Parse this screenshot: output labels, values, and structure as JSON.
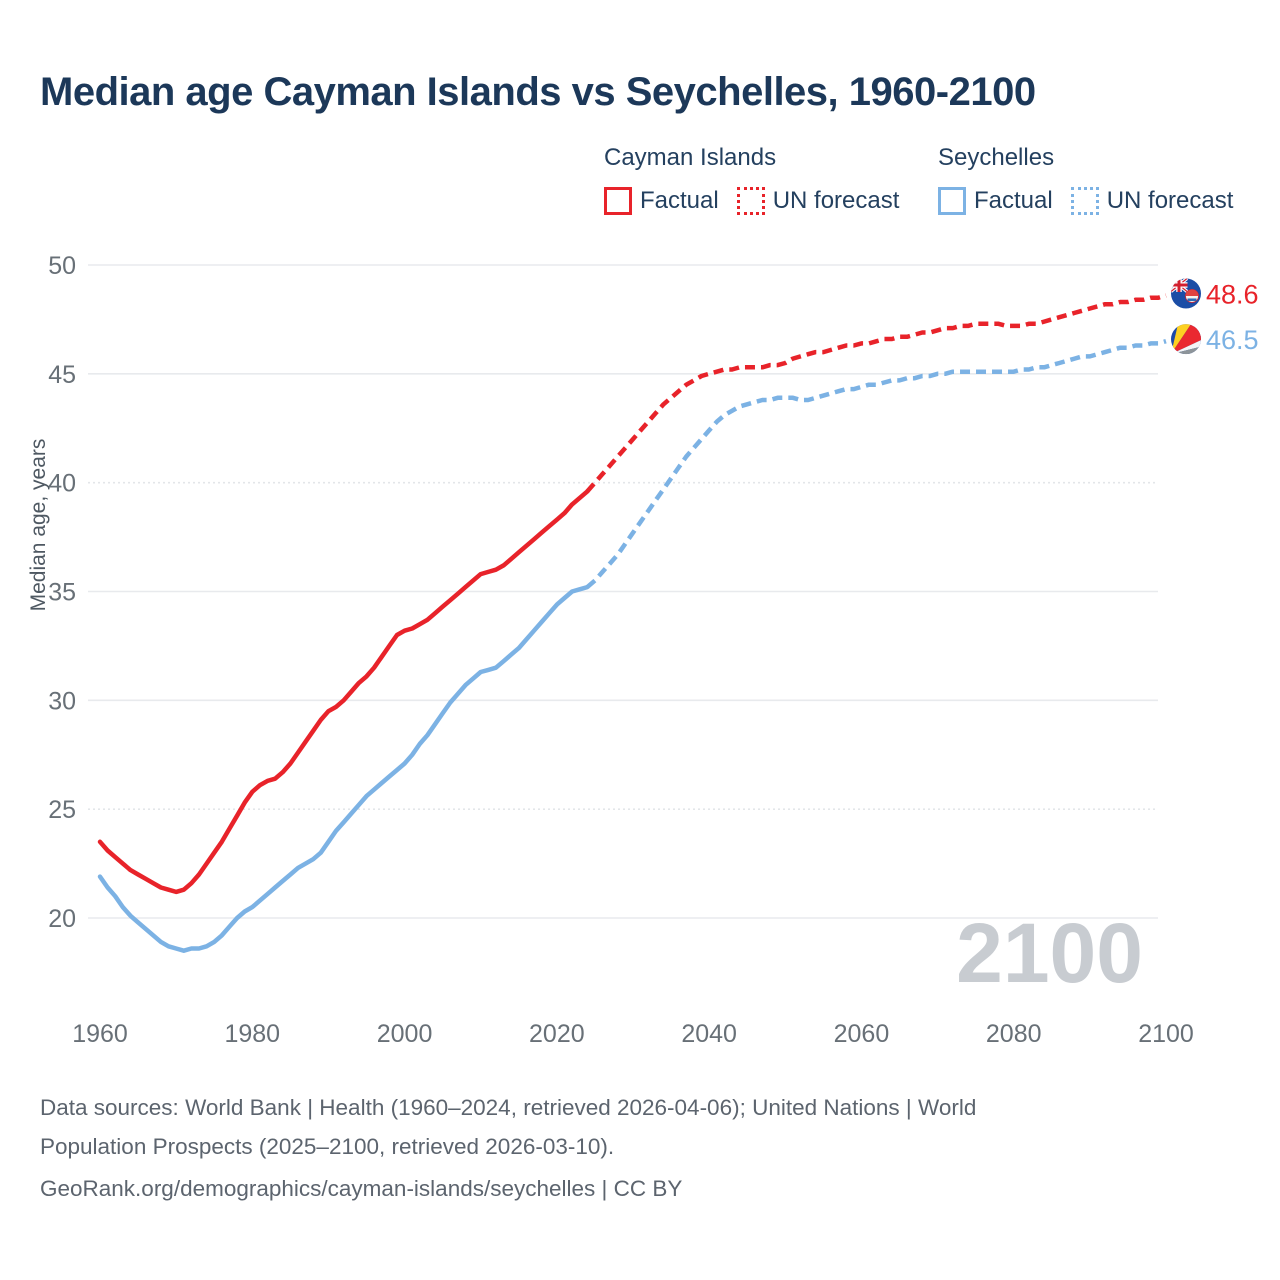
{
  "title": "Median age Cayman Islands vs Seychelles, 1960-2100",
  "watermark": "2100",
  "legend": {
    "groups": [
      {
        "name": "Cayman Islands",
        "color": "#e8232a",
        "factual_label": "Factual",
        "forecast_label": "UN forecast"
      },
      {
        "name": "Seychelles",
        "color": "#7cb2e4",
        "factual_label": "Factual",
        "forecast_label": "UN forecast"
      }
    ]
  },
  "footer": {
    "line1": "Data sources: World Bank | Health (1960–2024, retrieved 2026-04-06); United Nations | World",
    "line2": "Population Prospects (2025–2100, retrieved 2026-03-10).",
    "line3": "GeoRank.org/demographics/cayman-islands/seychelles | CC BY"
  },
  "chart_data": {
    "type": "line",
    "title": "Median age Cayman Islands vs Seychelles, 1960-2100",
    "xlabel": "",
    "ylabel": "Median age, years",
    "x_start": 1960,
    "x_end": 2100,
    "forecast_start": 2024,
    "ylim": [
      17.5,
      50
    ],
    "grid": true,
    "legend_position": "top-right",
    "yticks": [
      {
        "value": 20,
        "label": "20"
      },
      {
        "value": 25,
        "label": "25",
        "dotted": true
      },
      {
        "value": 30,
        "label": "30"
      },
      {
        "value": 35,
        "label": "35"
      },
      {
        "value": 40,
        "label": "40",
        "dotted": true
      },
      {
        "value": 45,
        "label": "45"
      },
      {
        "value": 50,
        "label": "50"
      }
    ],
    "xticks": [
      1960,
      1980,
      2000,
      2020,
      2040,
      2060,
      2080,
      2100
    ],
    "series": [
      {
        "id": "cayman-islands",
        "name": "Cayman Islands",
        "color": "#e8232a",
        "style_factual": "solid",
        "style_forecast": "dashed",
        "end_label": "48.6",
        "flag": "cayman-islands",
        "values": [
          23.5,
          23.1,
          22.8,
          22.5,
          22.2,
          22.0,
          21.8,
          21.6,
          21.4,
          21.3,
          21.2,
          21.3,
          21.6,
          22.0,
          22.5,
          23.0,
          23.5,
          24.1,
          24.7,
          25.3,
          25.8,
          26.1,
          26.3,
          26.4,
          26.7,
          27.1,
          27.6,
          28.1,
          28.6,
          29.1,
          29.5,
          29.7,
          30.0,
          30.4,
          30.8,
          31.1,
          31.5,
          32.0,
          32.5,
          33.0,
          33.2,
          33.3,
          33.5,
          33.7,
          34.0,
          34.3,
          34.6,
          34.9,
          35.2,
          35.5,
          35.8,
          35.9,
          36.0,
          36.2,
          36.5,
          36.8,
          37.1,
          37.4,
          37.7,
          38.0,
          38.3,
          38.6,
          39.0,
          39.3,
          39.6,
          40.0,
          40.4,
          40.8,
          41.2,
          41.6,
          42.0,
          42.4,
          42.8,
          43.2,
          43.6,
          43.9,
          44.2,
          44.5,
          44.7,
          44.9,
          45.0,
          45.1,
          45.2,
          45.2,
          45.3,
          45.3,
          45.3,
          45.3,
          45.4,
          45.4,
          45.5,
          45.7,
          45.8,
          45.9,
          46.0,
          46.0,
          46.1,
          46.2,
          46.3,
          46.3,
          46.4,
          46.4,
          46.5,
          46.6,
          46.6,
          46.7,
          46.7,
          46.8,
          46.9,
          46.9,
          47.0,
          47.1,
          47.1,
          47.2,
          47.2,
          47.3,
          47.3,
          47.3,
          47.3,
          47.2,
          47.2,
          47.2,
          47.3,
          47.3,
          47.4,
          47.5,
          47.6,
          47.7,
          47.8,
          47.9,
          48.0,
          48.1,
          48.2,
          48.2,
          48.3,
          48.3,
          48.4,
          48.4,
          48.5,
          48.5,
          48.6
        ]
      },
      {
        "id": "seychelles",
        "name": "Seychelles",
        "color": "#7cb2e4",
        "style_factual": "solid",
        "style_forecast": "dashed",
        "end_label": "46.5",
        "flag": "seychelles",
        "values": [
          21.9,
          21.4,
          21.0,
          20.5,
          20.1,
          19.8,
          19.5,
          19.2,
          18.9,
          18.7,
          18.6,
          18.5,
          18.6,
          18.6,
          18.7,
          18.9,
          19.2,
          19.6,
          20.0,
          20.3,
          20.5,
          20.8,
          21.1,
          21.4,
          21.7,
          22.0,
          22.3,
          22.5,
          22.7,
          23.0,
          23.5,
          24.0,
          24.4,
          24.8,
          25.2,
          25.6,
          25.9,
          26.2,
          26.5,
          26.8,
          27.1,
          27.5,
          28.0,
          28.4,
          28.9,
          29.4,
          29.9,
          30.3,
          30.7,
          31.0,
          31.3,
          31.4,
          31.5,
          31.8,
          32.1,
          32.4,
          32.8,
          33.2,
          33.6,
          34.0,
          34.4,
          34.7,
          35.0,
          35.1,
          35.2,
          35.5,
          35.9,
          36.3,
          36.7,
          37.2,
          37.7,
          38.2,
          38.7,
          39.2,
          39.7,
          40.2,
          40.7,
          41.2,
          41.6,
          42.0,
          42.4,
          42.8,
          43.1,
          43.3,
          43.5,
          43.6,
          43.7,
          43.8,
          43.8,
          43.9,
          43.9,
          43.9,
          43.8,
          43.8,
          43.9,
          44.0,
          44.1,
          44.2,
          44.3,
          44.3,
          44.4,
          44.5,
          44.5,
          44.6,
          44.7,
          44.7,
          44.8,
          44.8,
          44.9,
          44.9,
          45.0,
          45.0,
          45.1,
          45.1,
          45.1,
          45.1,
          45.1,
          45.1,
          45.1,
          45.1,
          45.1,
          45.2,
          45.2,
          45.3,
          45.3,
          45.4,
          45.5,
          45.6,
          45.7,
          45.8,
          45.8,
          45.9,
          46.0,
          46.1,
          46.2,
          46.2,
          46.3,
          46.3,
          46.4,
          46.4,
          46.5
        ]
      }
    ]
  }
}
